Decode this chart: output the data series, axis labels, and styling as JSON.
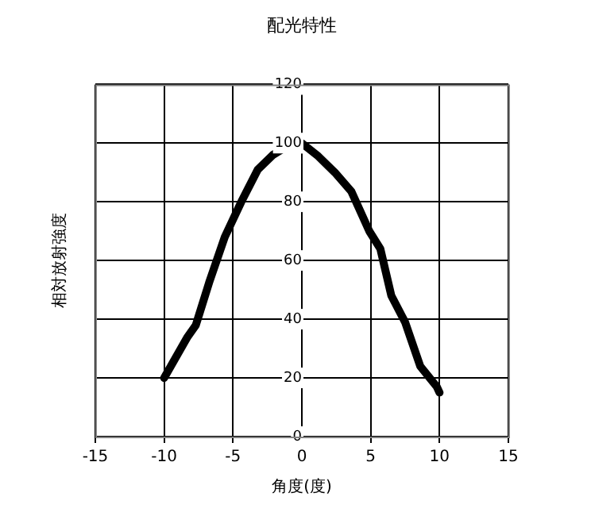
{
  "chart_data": {
    "type": "line",
    "title": "配光特性",
    "xlabel": "角度(度)",
    "ylabel": "相対放射強度",
    "x": [
      -10,
      -8.3,
      -7.7,
      -6.7,
      -5.6,
      -4.4,
      -3.2,
      -2.1,
      -0.7,
      -0.4,
      0,
      1.2,
      2.4,
      3.6,
      4.9,
      5.7,
      6.5,
      7.5,
      8.6,
      9.8,
      10
    ],
    "series": [
      {
        "color": "#000000",
        "values": [
          20,
          34,
          38,
          53,
          68,
          80,
          91,
          96,
          100,
          100,
          100,
          95.5,
          90,
          83.5,
          70,
          64,
          48,
          39,
          24,
          17,
          15
        ]
      }
    ],
    "xlim": [
      -15,
      15
    ],
    "xticks": [
      -15,
      -10,
      -5,
      0,
      5,
      10,
      15
    ],
    "ylim": [
      0,
      120
    ],
    "yticks": [
      0,
      20,
      40,
      60,
      80,
      100,
      120
    ],
    "grid": true,
    "marker": "none",
    "line_style": "solid"
  }
}
